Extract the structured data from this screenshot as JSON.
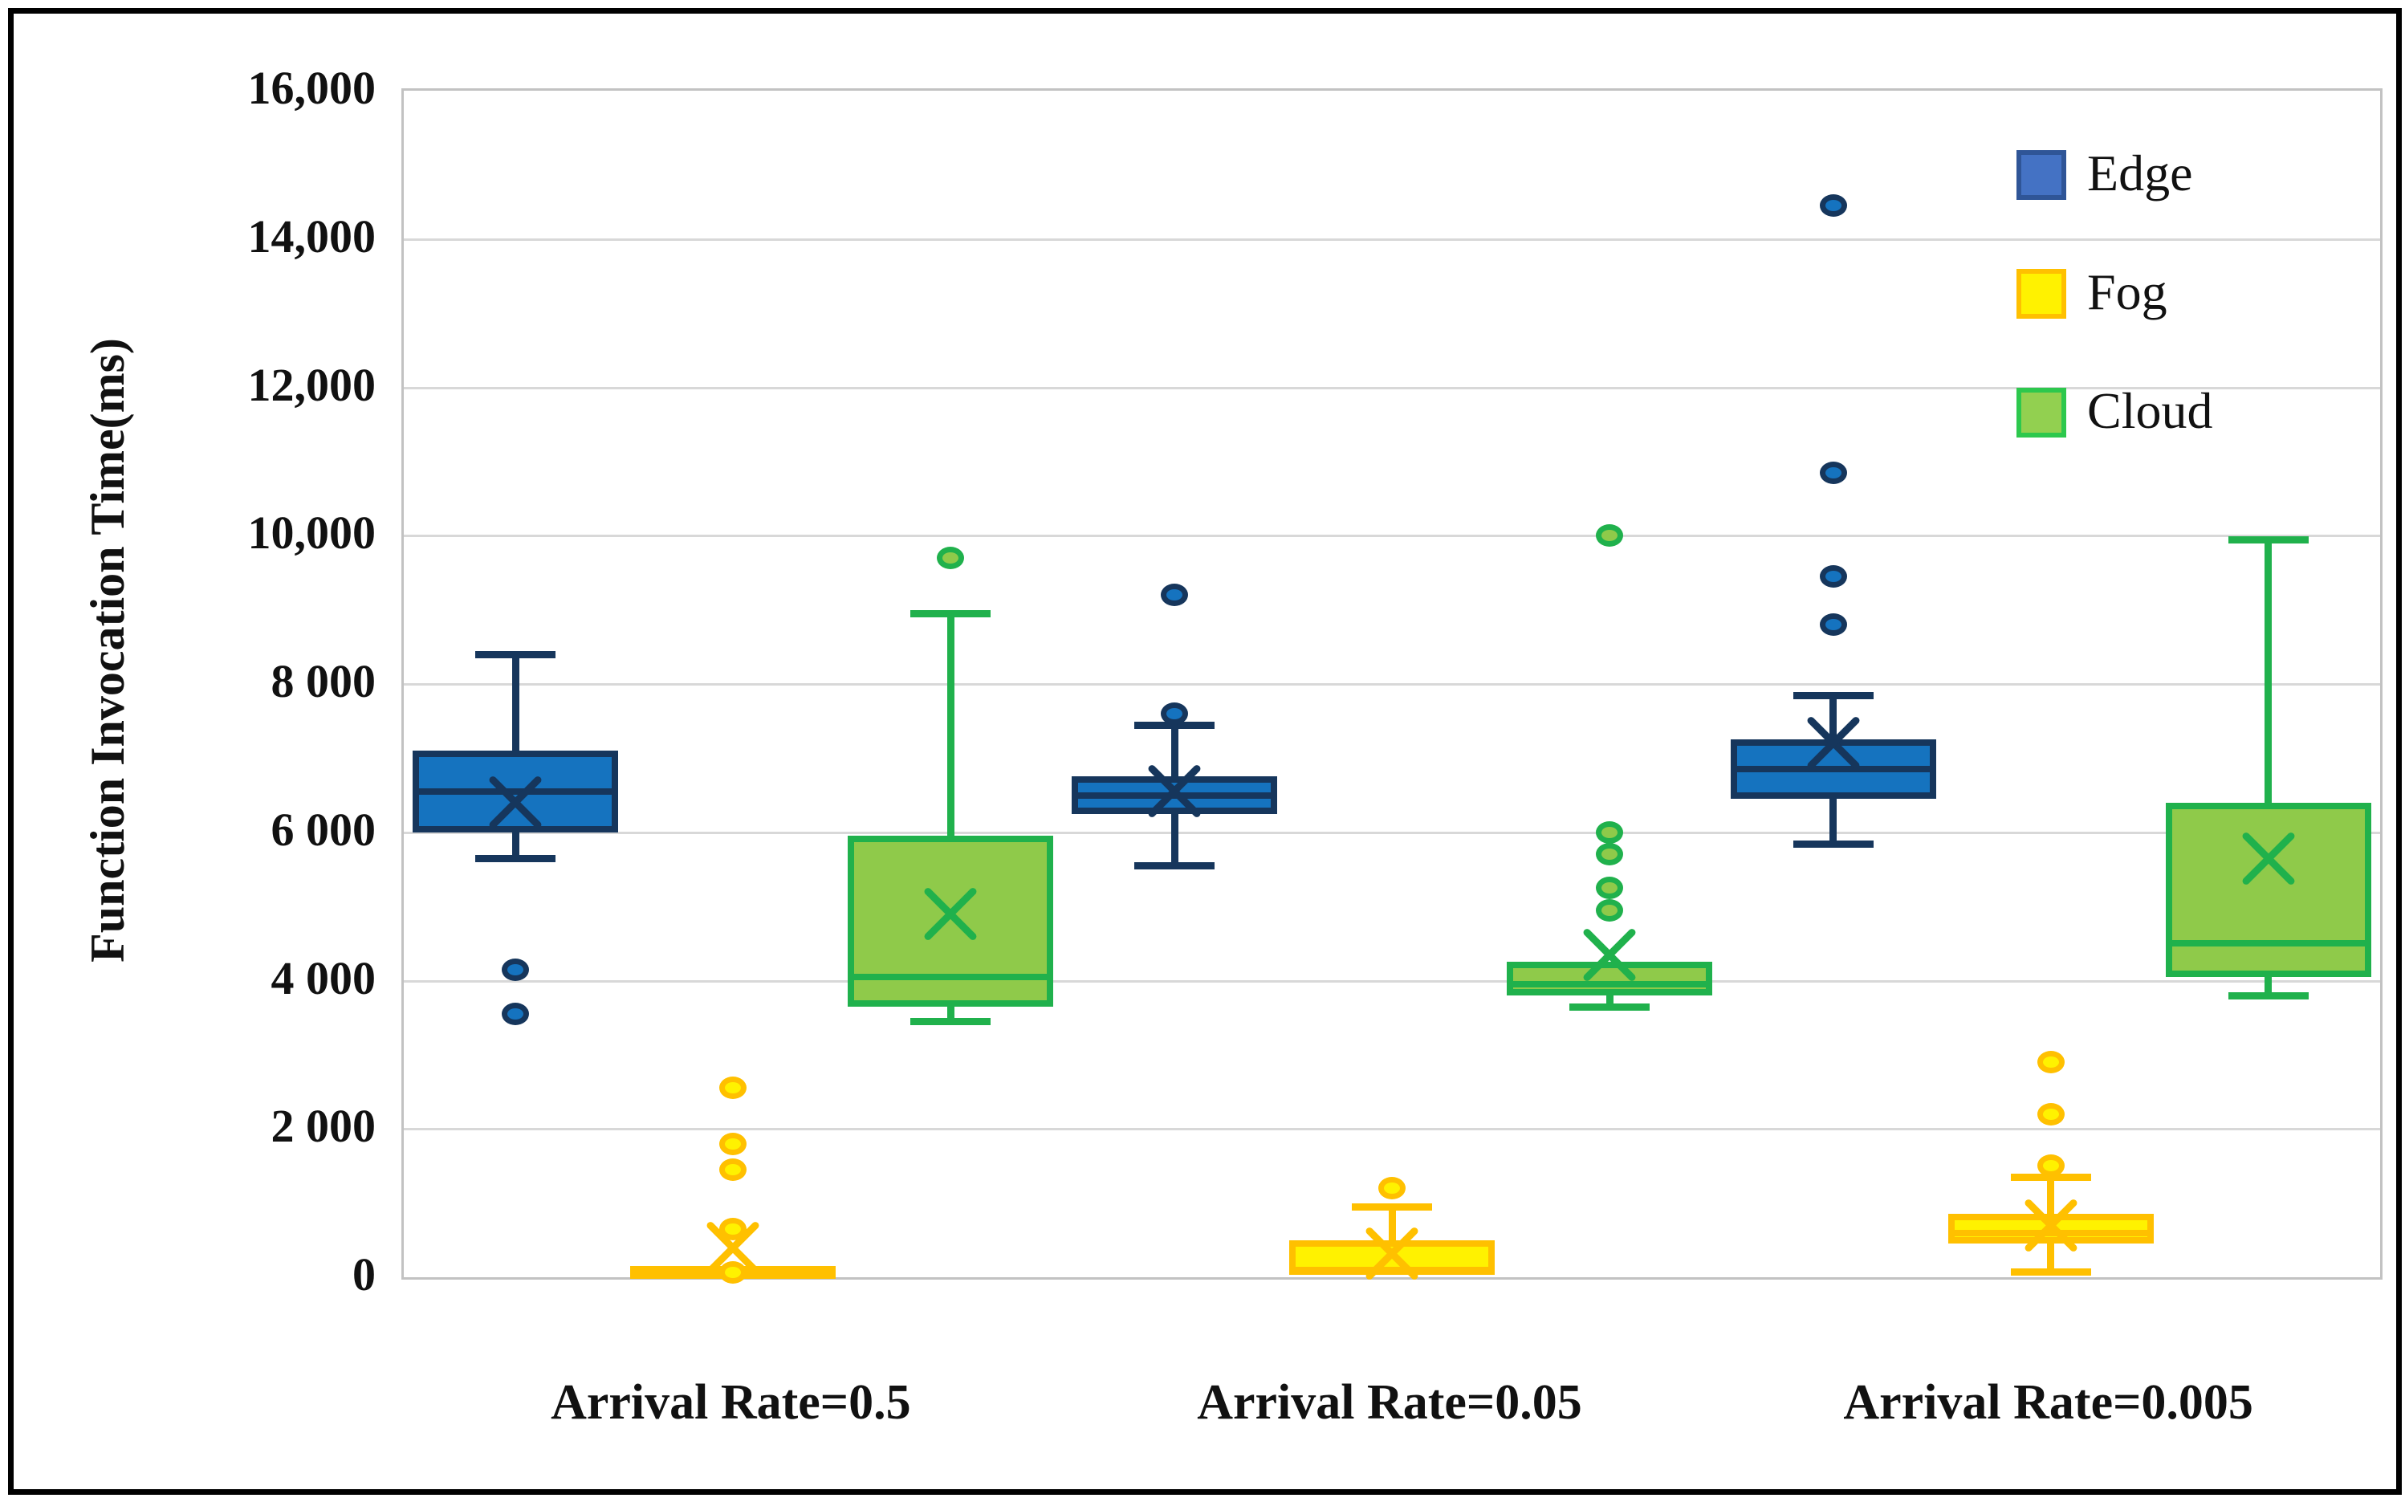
{
  "y_axis": {
    "title": "Function Invocation Time(ms)",
    "min": 0,
    "max": 16000,
    "ticks": [
      {
        "value": 16000,
        "label": "16,000"
      },
      {
        "value": 14000,
        "label": "14,000"
      },
      {
        "value": 12000,
        "label": "12,000"
      },
      {
        "value": 10000,
        "label": "10,000"
      },
      {
        "value": 8000,
        "label": "8 000"
      },
      {
        "value": 6000,
        "label": "6 000"
      },
      {
        "value": 4000,
        "label": "4 000"
      },
      {
        "value": 2000,
        "label": "2 000"
      },
      {
        "value": 0,
        "label": "0"
      }
    ]
  },
  "legend": {
    "position": "top-right",
    "items": [
      {
        "name": "Edge",
        "fill": "#4472c4",
        "border": "#2f5597"
      },
      {
        "name": "Fog",
        "fill": "#fff200",
        "border": "#ffc000"
      },
      {
        "name": "Cloud",
        "fill": "#92d050",
        "border": "#2dc84d"
      }
    ]
  },
  "colors": {
    "gridline": "#d8d8d8",
    "axis_border": "#c2c2c2",
    "text": "#111111",
    "figure_border": "#000000"
  },
  "chart_data": {
    "type": "box",
    "title": "",
    "xlabel": "",
    "ylabel": "Function Invocation Time(ms)",
    "ylim": [
      0,
      16000
    ],
    "grid": true,
    "legend_position": "top-right",
    "categories": [
      "Arrival Rate=0.5",
      "Arrival Rate=0.05",
      "Arrival Rate=0.005"
    ],
    "series": [
      {
        "name": "Edge",
        "fill": "#1573bf",
        "border": "#16365c",
        "boxes": [
          {
            "whisker_low": 5650,
            "q1": 6000,
            "median": 6550,
            "q3": 7100,
            "whisker_high": 8400,
            "mean": 6400,
            "outliers": [
              4150,
              3550
            ]
          },
          {
            "whisker_low": 5550,
            "q1": 6250,
            "median": 6500,
            "q3": 6750,
            "whisker_high": 7450,
            "mean": 6550,
            "outliers": [
              7600,
              9200
            ]
          },
          {
            "whisker_low": 5850,
            "q1": 6450,
            "median": 6850,
            "q3": 7250,
            "whisker_high": 7850,
            "mean": 7200,
            "outliers": [
              8800,
              9450,
              10850,
              14450
            ]
          }
        ]
      },
      {
        "name": "Fog",
        "fill": "#fff200",
        "border": "#ffc000",
        "boxes": [
          {
            "whisker_low": 10,
            "q1": 10,
            "median": 80,
            "q3": 150,
            "whisker_high": 150,
            "mean": 400,
            "outliers": [
              60,
              650,
              1450,
              1800,
              2550
            ]
          },
          {
            "whisker_low": 30,
            "q1": 30,
            "median": 100,
            "q3": 500,
            "whisker_high": 950,
            "mean": 320,
            "outliers": [
              1200
            ]
          },
          {
            "whisker_low": 80,
            "q1": 450,
            "median": 600,
            "q3": 850,
            "whisker_high": 1350,
            "mean": 700,
            "outliers": [
              1500,
              2200,
              2900
            ]
          }
        ]
      },
      {
        "name": "Cloud",
        "fill": "#8fca4a",
        "border": "#20b14c",
        "boxes": [
          {
            "whisker_low": 3450,
            "q1": 3650,
            "median": 4050,
            "q3": 5950,
            "whisker_high": 8950,
            "mean": 4900,
            "outliers": [
              9700
            ]
          },
          {
            "whisker_low": 3650,
            "q1": 3800,
            "median": 3950,
            "q3": 4250,
            "whisker_high": 4250,
            "mean": 4350,
            "outliers": [
              4950,
              5250,
              5700,
              6000,
              10000
            ]
          },
          {
            "whisker_low": 3800,
            "q1": 4050,
            "median": 4500,
            "q3": 6400,
            "whisker_high": 9950,
            "mean": 5650,
            "outliers": []
          }
        ]
      }
    ]
  }
}
